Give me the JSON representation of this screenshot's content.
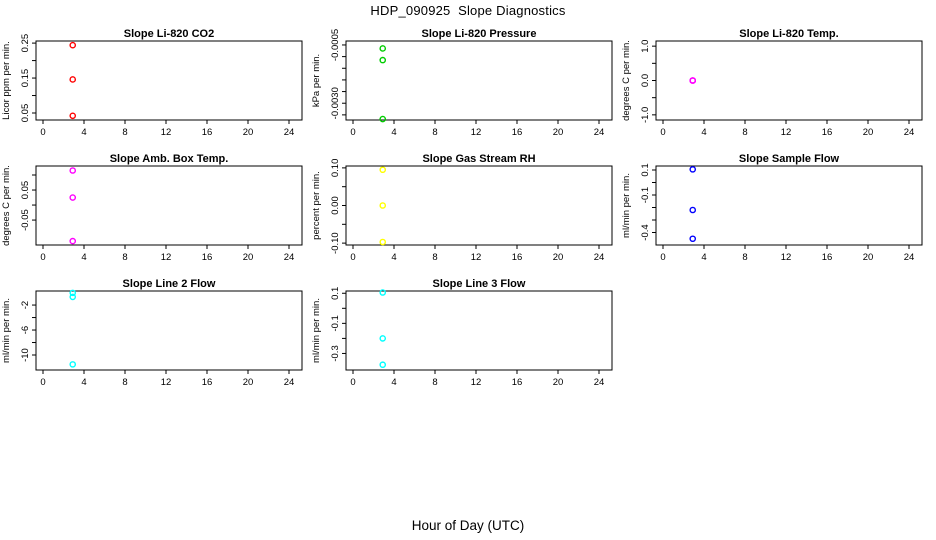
{
  "page": {
    "title": "HDP_090925  Slope Diagnostics",
    "xlabel": "Hour of Day (UTC)",
    "background": "#FFFFFF",
    "axis_color": "#000000"
  },
  "chart_data": {
    "type": "scatter",
    "layout": "grid-3x3-8-panels",
    "grid": "off",
    "legend": "none",
    "marker": "open-circle",
    "x_axis": {
      "label": "Hour of Day (UTC)",
      "ticks": [
        0,
        4,
        8,
        12,
        16,
        20,
        24
      ],
      "tick_labels": [
        "0",
        "4",
        "8",
        "12",
        "16",
        "20",
        "24"
      ],
      "range_hours": [
        0,
        24
      ]
    },
    "panels": [
      {
        "title": "Slope Li-820 CO2",
        "ylabel": "Licor ppm per min.",
        "color": "#FF0000",
        "x": [
          2.9,
          2.9,
          2.9
        ],
        "y": [
          0.244,
          0.146,
          0.042
        ],
        "ylim": [
          0.03,
          0.256
        ],
        "ytick_values": [
          0.05,
          0.15,
          0.25
        ],
        "ytick_labels": [
          "0.05",
          "0.15",
          "0.25"
        ],
        "yminor_values": [
          0.1,
          0.2
        ]
      },
      {
        "title": "Slope Li-820 Pressure",
        "ylabel": "kPa per min.",
        "color": "#00CD00",
        "x": [
          2.9,
          2.9,
          2.9
        ],
        "y": [
          -0.00065,
          -0.00115,
          -0.00368
        ],
        "ylim": [
          -0.00372,
          -0.00033
        ],
        "ytick_values": [
          -0.0005,
          -0.003
        ],
        "ytick_labels": [
          "-0.0005",
          "-0.0030"
        ],
        "yminor_values": [
          -0.001,
          -0.0015,
          -0.002,
          -0.0025,
          -0.0035
        ]
      },
      {
        "title": "Slope Li-820 Temp.",
        "ylabel": "degrees C per min.",
        "color": "#FF00FF",
        "x": [
          2.9,
          2.9,
          2.9
        ],
        "y": [
          0.0,
          0.0,
          0.0
        ],
        "ylim": [
          -1.15,
          1.15
        ],
        "ytick_values": [
          -1.0,
          0.0,
          1.0
        ],
        "ytick_labels": [
          "-1.0",
          "0.0",
          "1.0"
        ],
        "yminor_values": [
          -0.5,
          0.5
        ]
      },
      {
        "title": "Slope Amb. Box Temp.",
        "ylabel": "degrees C per min.",
        "color": "#FF00FF",
        "x": [
          2.9,
          2.9,
          2.9
        ],
        "y": [
          0.115,
          0.025,
          -0.12
        ],
        "ylim": [
          -0.133,
          0.13
        ],
        "ytick_values": [
          0.05,
          -0.05
        ],
        "ytick_labels": [
          "0.05",
          "-0.05"
        ],
        "yminor_values": [
          0.1,
          0.0
        ]
      },
      {
        "title": "Slope Gas Stream RH",
        "ylabel": "percent per min.",
        "color": "#FFFF00",
        "x": [
          2.9,
          2.9,
          2.9
        ],
        "y": [
          0.095,
          0.0,
          -0.097
        ],
        "ylim": [
          -0.105,
          0.105
        ],
        "ytick_values": [
          0.1,
          0.0,
          -0.1
        ],
        "ytick_labels": [
          "0.10",
          "0.00",
          "-0.10"
        ],
        "yminor_values": [
          0.05,
          -0.05
        ]
      },
      {
        "title": "Slope Sample Flow",
        "ylabel": "ml/min per min.",
        "color": "#0000FF",
        "x": [
          2.9,
          2.9,
          2.9
        ],
        "y": [
          0.105,
          -0.22,
          -0.45
        ],
        "ylim": [
          -0.5,
          0.132
        ],
        "ytick_values": [
          0.1,
          -0.1,
          -0.4
        ],
        "ytick_labels": [
          "0.1",
          "-0.1",
          "-0.4"
        ],
        "yminor_values": [
          0.0,
          -0.2,
          -0.3
        ]
      },
      {
        "title": "Slope Line 2 Flow",
        "ylabel": "ml/min per min.",
        "color": "#00FFFF",
        "x": [
          2.9,
          2.9,
          2.9
        ],
        "y": [
          -0.05,
          -0.7,
          -11.5
        ],
        "ylim": [
          -12.4,
          0.25
        ],
        "ytick_values": [
          -2,
          -6,
          -10
        ],
        "ytick_labels": [
          "-2",
          "-6",
          "-10"
        ],
        "yminor_values": [
          -4,
          -8
        ]
      },
      {
        "title": "Slope Line 3 Flow",
        "ylabel": "ml/min per min.",
        "color": "#00FFFF",
        "x": [
          2.9,
          2.9,
          2.9
        ],
        "y": [
          0.105,
          -0.2,
          -0.375
        ],
        "ylim": [
          -0.41,
          0.115
        ],
        "ytick_values": [
          0.1,
          -0.1,
          -0.3
        ],
        "ytick_labels": [
          "0.1",
          "-0.1",
          "-0.3"
        ],
        "yminor_values": [
          0.0,
          -0.2
        ]
      }
    ]
  }
}
